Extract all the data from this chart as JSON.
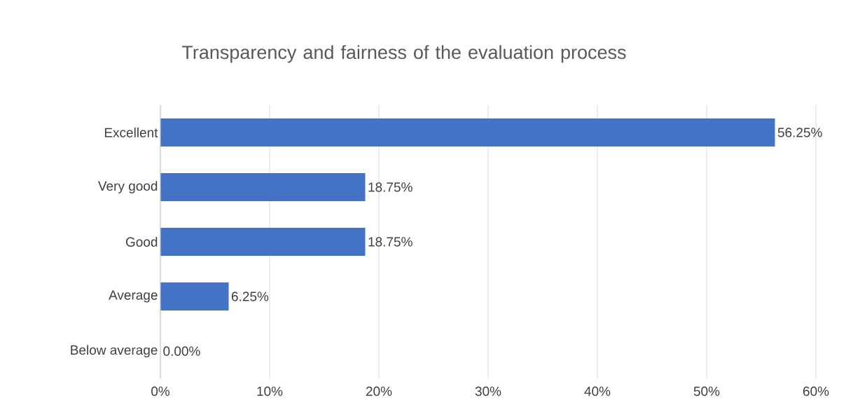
{
  "chart_data": {
    "type": "bar",
    "orientation": "horizontal",
    "title": "Transparency and fairness of the evaluation process",
    "categories": [
      "Excellent",
      "Very good",
      "Good",
      "Average",
      "Below average"
    ],
    "values": [
      56.25,
      18.75,
      18.75,
      6.25,
      0
    ],
    "value_labels": [
      "56.25%",
      "18.75%",
      "18.75%",
      "6.25%",
      "0.00%"
    ],
    "color": "#4472c4",
    "xlim": [
      0,
      60
    ],
    "xticks": [
      {
        "value": 0,
        "label": "0%"
      },
      {
        "value": 10,
        "label": "10%"
      },
      {
        "value": 20,
        "label": "20%"
      },
      {
        "value": 30,
        "label": "30%"
      },
      {
        "value": 40,
        "label": "40%"
      },
      {
        "value": 50,
        "label": "50%"
      },
      {
        "value": 60,
        "label": "60%"
      }
    ],
    "grid": "x"
  }
}
